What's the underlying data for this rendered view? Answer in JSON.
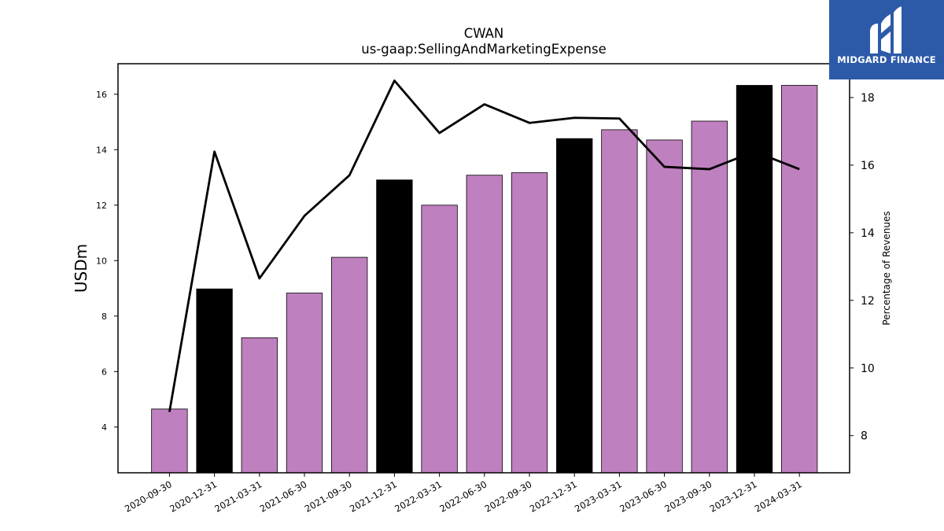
{
  "logo": {
    "text": "MIDGARD FINANCE"
  },
  "chart_data": {
    "type": "bar",
    "title": "CWAN",
    "subtitle": "us-gaap:SellingAndMarketingExpense",
    "ylabel": "USDm",
    "y2label": "Percentage of Revenues",
    "categories": [
      "2020-09-30",
      "2020-12-31",
      "2021-03-31",
      "2021-06-30",
      "2021-09-30",
      "2021-12-31",
      "2022-03-31",
      "2022-06-30",
      "2022-09-30",
      "2022-12-31",
      "2023-03-31",
      "2023-06-30",
      "2023-09-30",
      "2023-12-31",
      "2024-03-31"
    ],
    "values": [
      4.65,
      8.98,
      7.22,
      8.83,
      10.12,
      12.91,
      12.0,
      13.08,
      13.17,
      14.4,
      14.72,
      14.35,
      15.03,
      16.32,
      16.32
    ],
    "bar_colors": [
      "#bf80bf",
      "#000000",
      "#bf80bf",
      "#bf80bf",
      "#bf80bf",
      "#000000",
      "#bf80bf",
      "#bf80bf",
      "#bf80bf",
      "#000000",
      "#bf80bf",
      "#bf80bf",
      "#bf80bf",
      "#000000",
      "#bf80bf"
    ],
    "series": [
      {
        "values": [
          8.7,
          16.4,
          12.65,
          14.5,
          15.7,
          18.5,
          16.95,
          17.8,
          17.25,
          17.4,
          17.38,
          15.95,
          15.88,
          16.4,
          15.88
        ]
      }
    ],
    "ylim": [
      2.35,
      17.1
    ],
    "y2lim": [
      6.9,
      19.0
    ],
    "yticks": [
      4,
      6,
      8,
      10,
      12,
      14,
      16
    ],
    "y2ticks": [
      8,
      10,
      12,
      14,
      16,
      18
    ],
    "grid": false,
    "accent_color": "#bf80bf",
    "highlight_color": "#000000",
    "line_color": "#000000"
  }
}
